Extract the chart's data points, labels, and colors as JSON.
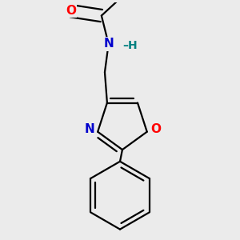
{
  "background_color": "#ebebeb",
  "bond_color": "#000000",
  "atom_colors": {
    "O": "#ff0000",
    "N": "#0000cc",
    "H": "#008080",
    "C": "#000000"
  },
  "font_size_atoms": 11,
  "font_size_H": 10,
  "line_width": 1.6,
  "figsize": [
    3.0,
    3.0
  ],
  "dpi": 100
}
